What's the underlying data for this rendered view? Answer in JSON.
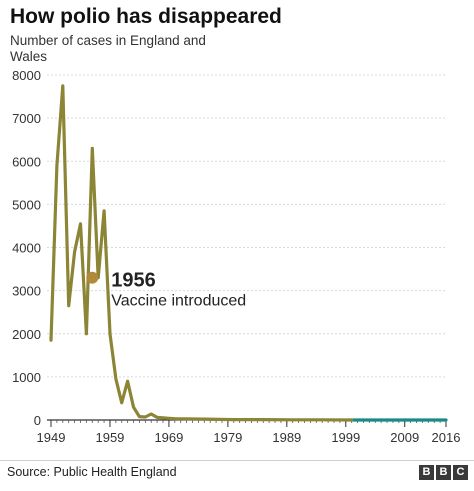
{
  "header": {
    "title": "How polio has disappeared",
    "subtitle": "Number of cases in England and Wales"
  },
  "chart_data": {
    "type": "line",
    "title": "How polio has disappeared",
    "subtitle": "Number of cases in England and Wales",
    "xlabel": "",
    "ylabel": "",
    "xlim": [
      1949,
      2016
    ],
    "ylim": [
      0,
      8000
    ],
    "y_ticks": [
      0,
      1000,
      2000,
      3000,
      4000,
      5000,
      6000,
      7000,
      8000
    ],
    "y_tick_labels": [
      "0",
      "1000",
      "2000",
      "3000",
      "4000",
      "5000",
      "6000",
      "7000",
      "8000"
    ],
    "x_ticks": [
      1949,
      1959,
      1969,
      1979,
      1989,
      1999,
      2009,
      2016
    ],
    "x_tick_labels": [
      "1949",
      "1959",
      "1969",
      "1979",
      "1989",
      "1999",
      "2009",
      "2016"
    ],
    "grid": "horizontal",
    "legend": "none",
    "series": [
      {
        "color": "#8c8536",
        "x": [
          1949,
          1950,
          1951,
          1952,
          1953,
          1954,
          1955,
          1956,
          1957,
          1958,
          1959,
          1960,
          1961,
          1962,
          1963,
          1964,
          1965,
          1966,
          1967,
          1968,
          1969,
          1970,
          1975,
          1980,
          1985,
          1990,
          1995,
          2000
        ],
        "y": [
          1850,
          5900,
          7750,
          2650,
          3900,
          4550,
          2000,
          6300,
          3300,
          4850,
          2000,
          950,
          400,
          900,
          300,
          80,
          70,
          140,
          60,
          50,
          40,
          30,
          20,
          10,
          10,
          5,
          5,
          0
        ]
      },
      {
        "color": "#1a8a85",
        "x": [
          2000,
          2016
        ],
        "y": [
          0,
          0
        ]
      }
    ],
    "annotations": [
      {
        "x": 1956,
        "y": 3300,
        "year_label": "1956",
        "text": "Vaccine introduced"
      }
    ]
  },
  "footer": {
    "source": "Source: Public Health England",
    "logo_letters": [
      "B",
      "B",
      "C"
    ]
  }
}
